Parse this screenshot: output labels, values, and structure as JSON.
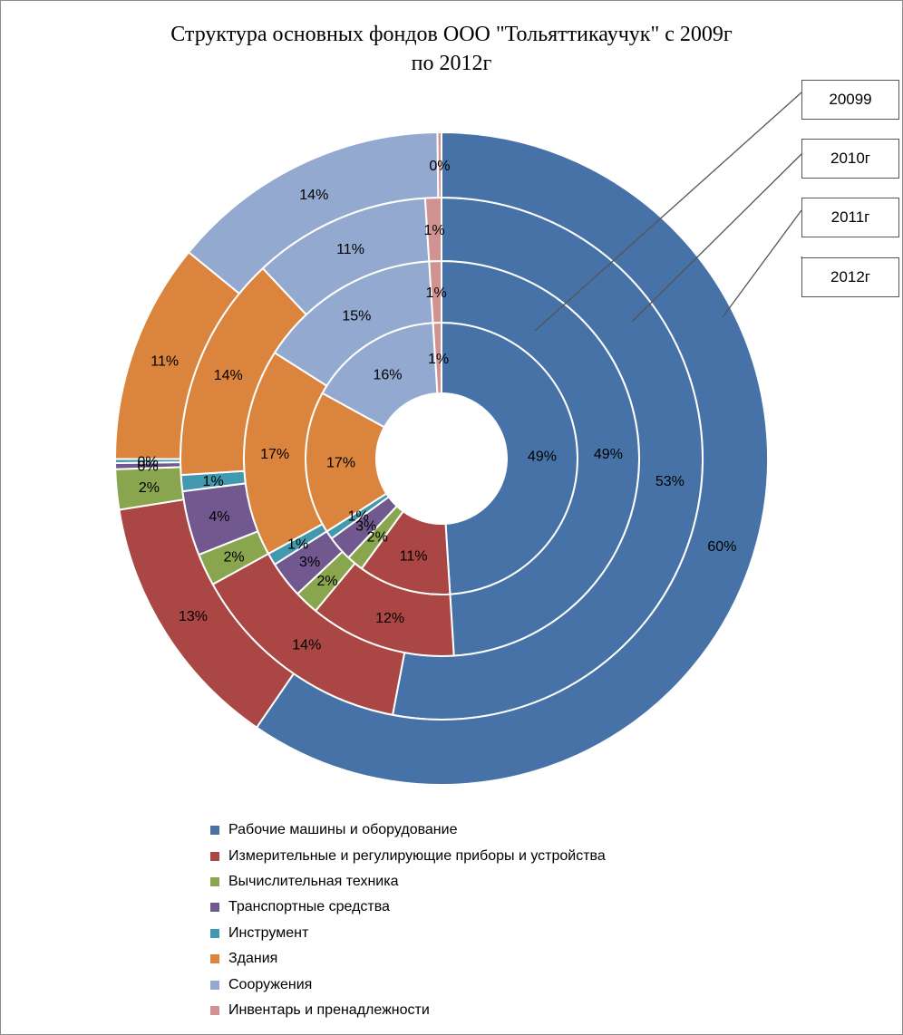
{
  "chart_data": {
    "type": "donut",
    "title_lines": [
      "Структура  основных  фондов ООО \"Тольяттикаучук\"  с 2009г",
      "по 2012г"
    ],
    "categories": [
      "Рабочие машины и оборудование",
      "Измерительные и регулирующие приборы и устройства",
      "Вычислительная техника",
      "Транспортные средства",
      "Инструмент",
      "Здания",
      "Сооружения",
      "Инвентарь и пренадлежности"
    ],
    "colors": [
      "#4672a8",
      "#aa4643",
      "#89a54e",
      "#71588f",
      "#4198af",
      "#db843d",
      "#93a9cf",
      "#d19392"
    ],
    "series": [
      {
        "name": "20099",
        "values": [
          49,
          11,
          2,
          3,
          1,
          17,
          16,
          1
        ],
        "labels": [
          "49%",
          "11%",
          "2%",
          "3%",
          "1%",
          "17%",
          "16%",
          "1%"
        ]
      },
      {
        "name": "2010г",
        "values": [
          49,
          12,
          2,
          3,
          1,
          17,
          15,
          1
        ],
        "labels": [
          "49%",
          "12%",
          "2%",
          "3%",
          "1%",
          "17%",
          "15%",
          "1%"
        ]
      },
      {
        "name": "2011г",
        "values": [
          53,
          14,
          2,
          4,
          1,
          14,
          11,
          1
        ],
        "labels": [
          "53%",
          "14%",
          "2%",
          "4%",
          "1%",
          "14%",
          "11%",
          "1%"
        ]
      },
      {
        "name": "2012г",
        "values": [
          60,
          13,
          2,
          0.3,
          0.2,
          11,
          14,
          0.2
        ],
        "labels": [
          "60%",
          "13%",
          "2%",
          "0%",
          "0%",
          "11%",
          "14%",
          "0%"
        ]
      }
    ],
    "legend_position": "bottom"
  }
}
